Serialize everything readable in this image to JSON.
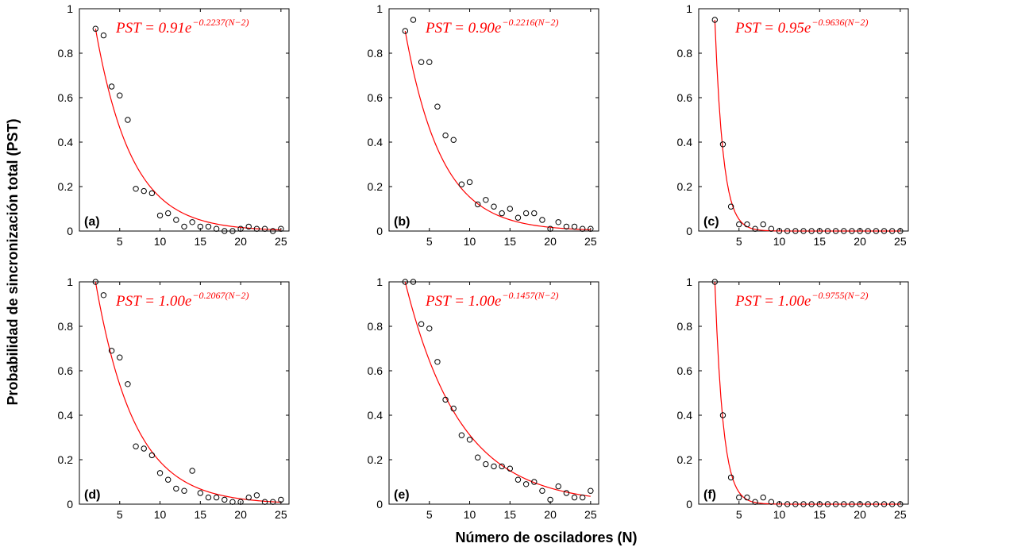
{
  "figure": {
    "ylabel": "Probabilidad de sincronización total (PST)",
    "xlabel": "Número de osciladores (N)"
  },
  "chart_data": [
    {
      "type": "scatter",
      "panel": "(a)",
      "amplitude": "0.91",
      "rate": "0.2237",
      "xlim": [
        0,
        26
      ],
      "ylim": [
        0,
        1
      ],
      "xticks": [
        5,
        10,
        15,
        20,
        25
      ],
      "yticks": [
        0,
        0.2,
        0.4,
        0.6,
        0.8,
        1
      ],
      "x": [
        2,
        3,
        4,
        5,
        6,
        7,
        8,
        9,
        10,
        11,
        12,
        13,
        14,
        15,
        16,
        17,
        18,
        19,
        20,
        21,
        22,
        23,
        24,
        25
      ],
      "y": [
        0.91,
        0.88,
        0.65,
        0.61,
        0.5,
        0.19,
        0.18,
        0.17,
        0.07,
        0.08,
        0.05,
        0.02,
        0.04,
        0.02,
        0.02,
        0.01,
        0.0,
        0.0,
        0.01,
        0.02,
        0.01,
        0.01,
        0.0,
        0.01
      ]
    },
    {
      "type": "scatter",
      "panel": "(b)",
      "amplitude": "0.90",
      "rate": "0.2216",
      "xlim": [
        0,
        26
      ],
      "ylim": [
        0,
        1
      ],
      "xticks": [
        5,
        10,
        15,
        20,
        25
      ],
      "yticks": [
        0,
        0.2,
        0.4,
        0.6,
        0.8,
        1
      ],
      "x": [
        2,
        3,
        4,
        5,
        6,
        7,
        8,
        9,
        10,
        11,
        12,
        13,
        14,
        15,
        16,
        17,
        18,
        19,
        20,
        21,
        22,
        23,
        24,
        25
      ],
      "y": [
        0.9,
        0.95,
        0.76,
        0.76,
        0.56,
        0.43,
        0.41,
        0.21,
        0.22,
        0.12,
        0.14,
        0.11,
        0.08,
        0.1,
        0.06,
        0.08,
        0.08,
        0.05,
        0.01,
        0.04,
        0.02,
        0.02,
        0.01,
        0.01
      ]
    },
    {
      "type": "scatter",
      "panel": "(c)",
      "amplitude": "0.95",
      "rate": "0.9636",
      "xlim": [
        0,
        26
      ],
      "ylim": [
        0,
        1
      ],
      "xticks": [
        5,
        10,
        15,
        20,
        25
      ],
      "yticks": [
        0,
        0.2,
        0.4,
        0.6,
        0.8,
        1
      ],
      "x": [
        2,
        3,
        4,
        5,
        6,
        7,
        8,
        9,
        10,
        11,
        12,
        13,
        14,
        15,
        16,
        17,
        18,
        19,
        20,
        21,
        22,
        23,
        24,
        25
      ],
      "y": [
        0.95,
        0.39,
        0.11,
        0.03,
        0.03,
        0.01,
        0.03,
        0.01,
        0,
        0,
        0,
        0,
        0,
        0,
        0,
        0,
        0,
        0,
        0,
        0,
        0,
        0,
        0,
        0
      ]
    },
    {
      "type": "scatter",
      "panel": "(d)",
      "amplitude": "1.00",
      "rate": "0.2067",
      "xlim": [
        0,
        26
      ],
      "ylim": [
        0,
        1
      ],
      "xticks": [
        5,
        10,
        15,
        20,
        25
      ],
      "yticks": [
        0,
        0.2,
        0.4,
        0.6,
        0.8,
        1
      ],
      "x": [
        2,
        3,
        4,
        5,
        6,
        7,
        8,
        9,
        10,
        11,
        12,
        13,
        14,
        15,
        16,
        17,
        18,
        19,
        20,
        21,
        22,
        23,
        24,
        25
      ],
      "y": [
        1.0,
        0.94,
        0.69,
        0.66,
        0.54,
        0.26,
        0.25,
        0.22,
        0.14,
        0.11,
        0.07,
        0.06,
        0.15,
        0.05,
        0.03,
        0.03,
        0.02,
        0.01,
        0.01,
        0.03,
        0.04,
        0.01,
        0.01,
        0.02
      ]
    },
    {
      "type": "scatter",
      "panel": "(e)",
      "amplitude": "1.00",
      "rate": "0.1457",
      "xlim": [
        0,
        26
      ],
      "ylim": [
        0,
        1
      ],
      "xticks": [
        5,
        10,
        15,
        20,
        25
      ],
      "yticks": [
        0,
        0.2,
        0.4,
        0.6,
        0.8,
        1
      ],
      "x": [
        2,
        3,
        4,
        5,
        6,
        7,
        8,
        9,
        10,
        11,
        12,
        13,
        14,
        15,
        16,
        17,
        18,
        19,
        20,
        21,
        22,
        23,
        24,
        25
      ],
      "y": [
        1.0,
        1.0,
        0.81,
        0.79,
        0.64,
        0.47,
        0.43,
        0.31,
        0.29,
        0.21,
        0.18,
        0.17,
        0.17,
        0.16,
        0.11,
        0.09,
        0.1,
        0.06,
        0.02,
        0.08,
        0.05,
        0.03,
        0.03,
        0.06
      ]
    },
    {
      "type": "scatter",
      "panel": "(f)",
      "amplitude": "1.00",
      "rate": "0.9755",
      "xlim": [
        0,
        26
      ],
      "ylim": [
        0,
        1
      ],
      "xticks": [
        5,
        10,
        15,
        20,
        25
      ],
      "yticks": [
        0,
        0.2,
        0.4,
        0.6,
        0.8,
        1
      ],
      "x": [
        2,
        3,
        4,
        5,
        6,
        7,
        8,
        9,
        10,
        11,
        12,
        13,
        14,
        15,
        16,
        17,
        18,
        19,
        20,
        21,
        22,
        23,
        24,
        25
      ],
      "y": [
        1.0,
        0.4,
        0.12,
        0.03,
        0.03,
        0.01,
        0.03,
        0.01,
        0,
        0,
        0,
        0,
        0,
        0,
        0,
        0,
        0,
        0,
        0,
        0,
        0,
        0,
        0,
        0
      ]
    }
  ],
  "colors": {
    "fit": "#ff0000",
    "marker": "#000000",
    "axes": "#000000"
  }
}
